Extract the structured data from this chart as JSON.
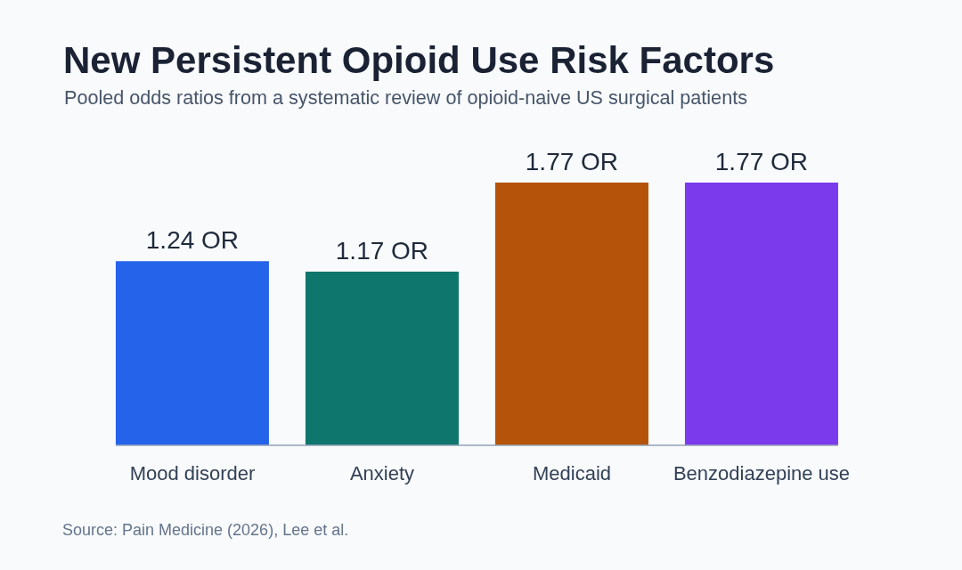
{
  "chart_data": {
    "type": "bar",
    "title": "New Persistent Opioid Use Risk Factors",
    "subtitle": "Pooled odds ratios from a systematic review of opioid-naive US surgical patients",
    "categories": [
      "Mood disorder",
      "Anxiety",
      "Medicaid",
      "Benzodiazepine use"
    ],
    "values": [
      1.24,
      1.17,
      1.77,
      1.77
    ],
    "value_labels": [
      "1.24 OR",
      "1.17 OR",
      "1.77 OR",
      "1.77 OR"
    ],
    "colors": [
      "#2563eb",
      "#0f766e",
      "#b45309",
      "#7c3aed"
    ],
    "tick_labels": "x",
    "annotations": [
      "Source: Pain Medicine (2026), Lee et al."
    ]
  }
}
